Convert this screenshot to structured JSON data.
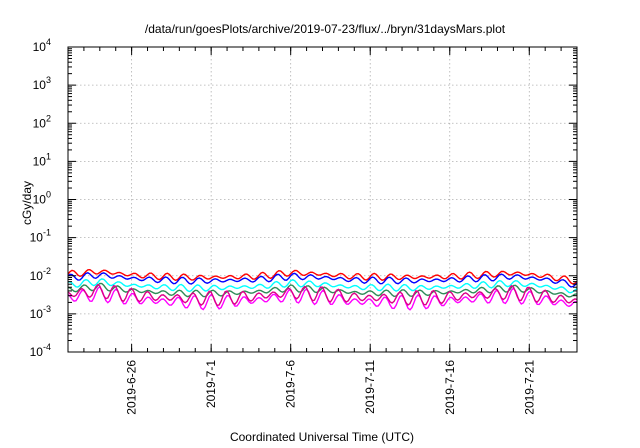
{
  "chart_data": {
    "type": "line",
    "title": "/data/run/goesPlots/archive/2019-07-23/flux/../bryn/31daysMars.plot",
    "xlabel": "Coordinated Universal Time (UTC)",
    "ylabel": "cGy/day",
    "yscale": "log",
    "ylim": [
      0.0001,
      10000
    ],
    "y_ticks": [
      {
        "base": "10",
        "exp": "-4"
      },
      {
        "base": "10",
        "exp": "-3"
      },
      {
        "base": "10",
        "exp": "-2"
      },
      {
        "base": "10",
        "exp": "-1"
      },
      {
        "base": "10",
        "exp": "0"
      },
      {
        "base": "10",
        "exp": "1"
      },
      {
        "base": "10",
        "exp": "2"
      },
      {
        "base": "10",
        "exp": "3"
      },
      {
        "base": "10",
        "exp": "4"
      }
    ],
    "xlim": [
      "2019-06-22",
      "2019-07-24"
    ],
    "x_ticks": [
      "2019-6-26",
      "2019-7-1",
      "2019-7-6",
      "2019-7-11",
      "2019-7-16",
      "2019-7-21"
    ],
    "grid": true,
    "series": [
      {
        "color": "#ff0000",
        "x": [
          "2019-06-22",
          "2019-06-24",
          "2019-06-26",
          "2019-06-28",
          "2019-06-30",
          "2019-07-02",
          "2019-07-04",
          "2019-07-06",
          "2019-07-08",
          "2019-07-10",
          "2019-07-12",
          "2019-07-14",
          "2019-07-16",
          "2019-07-18",
          "2019-07-20",
          "2019-07-22",
          "2019-07-24"
        ],
        "values": [
          0.011,
          0.013,
          0.0105,
          0.0095,
          0.009,
          0.0092,
          0.0098,
          0.012,
          0.011,
          0.0095,
          0.0093,
          0.0092,
          0.0096,
          0.0105,
          0.0118,
          0.0098,
          0.0072
        ]
      },
      {
        "color": "#0000ff",
        "x": [
          "2019-06-22",
          "2019-06-24",
          "2019-06-26",
          "2019-06-28",
          "2019-06-30",
          "2019-07-02",
          "2019-07-04",
          "2019-07-06",
          "2019-07-08",
          "2019-07-10",
          "2019-07-12",
          "2019-07-14",
          "2019-07-16",
          "2019-07-18",
          "2019-07-20",
          "2019-07-22",
          "2019-07-24"
        ],
        "values": [
          0.0088,
          0.0105,
          0.0085,
          0.0077,
          0.0073,
          0.0075,
          0.008,
          0.0096,
          0.009,
          0.0077,
          0.0075,
          0.0074,
          0.0078,
          0.0086,
          0.0096,
          0.008,
          0.0058
        ]
      },
      {
        "color": "#00ffff",
        "x": [
          "2019-06-22",
          "2019-06-24",
          "2019-06-26",
          "2019-06-28",
          "2019-06-30",
          "2019-07-02",
          "2019-07-04",
          "2019-07-06",
          "2019-07-08",
          "2019-07-10",
          "2019-07-12",
          "2019-07-14",
          "2019-07-16",
          "2019-07-18",
          "2019-07-20",
          "2019-07-22",
          "2019-07-24"
        ],
        "values": [
          0.0058,
          0.007,
          0.0056,
          0.005,
          0.0047,
          0.0049,
          0.0052,
          0.0064,
          0.0059,
          0.005,
          0.0049,
          0.0048,
          0.0051,
          0.0057,
          0.0064,
          0.0053,
          0.0039
        ]
      },
      {
        "color": "#2e8b57",
        "x": [
          "2019-06-22",
          "2019-06-24",
          "2019-06-26",
          "2019-06-28",
          "2019-06-30",
          "2019-07-02",
          "2019-07-04",
          "2019-07-06",
          "2019-07-08",
          "2019-07-10",
          "2019-07-12",
          "2019-07-14",
          "2019-07-16",
          "2019-07-18",
          "2019-07-20",
          "2019-07-22",
          "2019-07-24"
        ],
        "values": [
          0.0043,
          0.0052,
          0.0041,
          0.0036,
          0.0034,
          0.0035,
          0.0038,
          0.0047,
          0.0043,
          0.0036,
          0.0035,
          0.0035,
          0.0037,
          0.0042,
          0.0047,
          0.0038,
          0.0029
        ]
      },
      {
        "color": "#ff00ff",
        "x": [
          "2019-06-22",
          "2019-06-24",
          "2019-06-26",
          "2019-06-28",
          "2019-06-30",
          "2019-07-02",
          "2019-07-04",
          "2019-07-06",
          "2019-07-08",
          "2019-07-10",
          "2019-07-12",
          "2019-07-14",
          "2019-07-16",
          "2019-07-18",
          "2019-07-20",
          "2019-07-22",
          "2019-07-24"
        ],
        "values": [
          0.0027,
          0.0033,
          0.0025,
          0.0021,
          0.002,
          0.0021,
          0.0023,
          0.003,
          0.0027,
          0.0021,
          0.002,
          0.002,
          0.0022,
          0.0026,
          0.003,
          0.0023,
          0.0017
        ]
      },
      {
        "color": "#dd0088",
        "x": [
          "2019-06-22",
          "2019-06-24",
          "2019-06-26",
          "2019-06-28",
          "2019-06-30",
          "2019-07-02",
          "2019-07-04",
          "2019-07-06",
          "2019-07-08",
          "2019-07-10",
          "2019-07-12",
          "2019-07-14",
          "2019-07-16",
          "2019-07-18",
          "2019-07-20",
          "2019-07-22",
          "2019-07-24"
        ],
        "values": [
          0.0033,
          0.004,
          0.0031,
          0.0027,
          0.0025,
          0.0026,
          0.0029,
          0.0036,
          0.0033,
          0.0027,
          0.0026,
          0.0026,
          0.0028,
          0.0032,
          0.0036,
          0.0029,
          0.0021
        ]
      }
    ]
  }
}
